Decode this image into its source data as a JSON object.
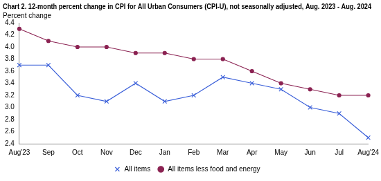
{
  "chart_data": {
    "type": "line",
    "title": "Chart 2. 12-month percent change in CPI for All Urban Consumers (CPI-U), not seasonally adjusted, Aug. 2023 - Aug. 2024",
    "y_label": "Percent change",
    "categories": [
      "Aug'23",
      "Sep",
      "Oct",
      "Nov",
      "Dec",
      "Jan",
      "Feb",
      "Mar",
      "Apr",
      "May",
      "Jun",
      "Jul",
      "Aug'24"
    ],
    "series": [
      {
        "name": "All items",
        "color": "#3a5fd9",
        "marker": "x",
        "line_style": "solid",
        "values": [
          3.7,
          3.7,
          3.2,
          3.1,
          3.4,
          3.1,
          3.2,
          3.5,
          3.4,
          3.3,
          3.0,
          2.9,
          2.5
        ]
      },
      {
        "name": "All items less food and energy",
        "color": "#8b2252",
        "marker": "circle",
        "line_style": "solid",
        "values": [
          4.3,
          4.1,
          4.0,
          4.0,
          3.9,
          3.9,
          3.8,
          3.8,
          3.6,
          3.4,
          3.3,
          3.2,
          3.2
        ]
      }
    ],
    "ylim": [
      2.4,
      4.4
    ],
    "yticks": [
      2.4,
      2.6,
      2.8,
      {
        "value": 3,
        "label": "3.0"
      },
      3.2,
      3.4,
      3.6,
      3.8,
      {
        "value": 4,
        "label": "4.0"
      },
      4.2,
      4.4
    ],
    "grid": false,
    "legend": "bottom"
  }
}
